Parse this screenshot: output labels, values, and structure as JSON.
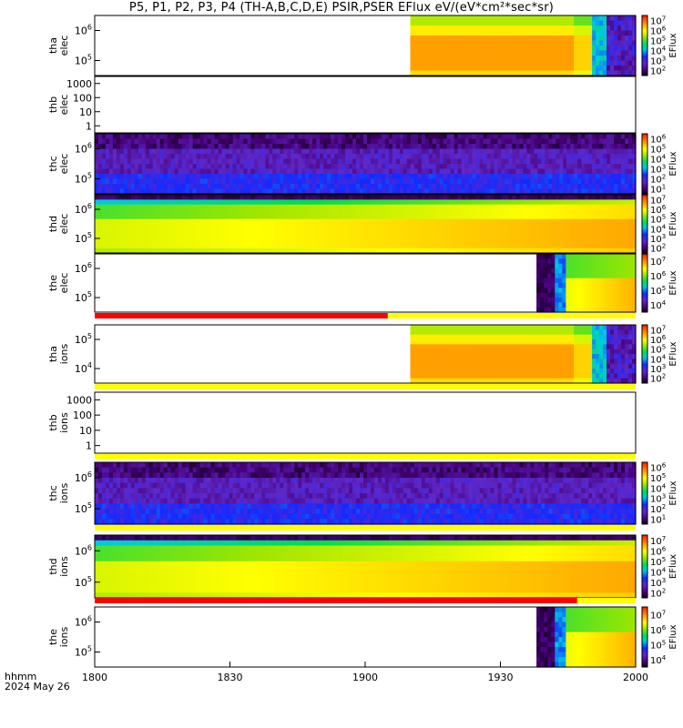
{
  "title": "P5, P1, P2, P3, P4 (TH-A,B,C,D,E) PSIR,PSER EFlux eV/(eV*cm²*sec*sr)",
  "footer": {
    "time_label": "hhmm",
    "date_label": "2024 May 26"
  },
  "colors": {
    "flag_red": "#ff0000",
    "flag_yellow": "#ffff00",
    "axis": "#000000"
  },
  "chart_data": {
    "type": "heatmap",
    "x_ticks": [
      "1800",
      "1830",
      "1900",
      "1930",
      "2000"
    ],
    "xlim": [
      "18:00",
      "20:00"
    ],
    "cbar_label": "EFlux",
    "panels": [
      {
        "id": "tha-elec",
        "probe": "tha",
        "species": "elec",
        "log": true,
        "yticks": [
          {
            "e": 5,
            "t": "10"
          },
          {
            "e": 6,
            "t": "10"
          }
        ],
        "data_start": "19:10",
        "data_end": "20:00",
        "pattern": "tha",
        "cbar": [
          {
            "e": 7,
            "t": "10"
          },
          {
            "e": 6,
            "t": "10"
          },
          {
            "e": 5,
            "t": "10"
          },
          {
            "e": 4,
            "t": "10"
          },
          {
            "e": 3,
            "t": "10"
          },
          {
            "e": 2,
            "t": "10"
          }
        ]
      },
      {
        "id": "thb-elec",
        "probe": "thb",
        "species": "elec",
        "log": true,
        "yticks": [
          {
            "t": "1"
          },
          {
            "t": "10"
          },
          {
            "t": "100"
          },
          {
            "t": "1000"
          }
        ],
        "data_start": null,
        "data_end": null,
        "pattern": "empty",
        "cbar": []
      },
      {
        "id": "thc-elec",
        "probe": "thc",
        "species": "elec",
        "log": true,
        "yticks": [
          {
            "e": 5,
            "t": "10"
          },
          {
            "e": 6,
            "t": "10"
          }
        ],
        "data_start": "18:00",
        "data_end": "20:00",
        "pattern": "thc",
        "cbar": [
          {
            "e": 6,
            "t": "10"
          },
          {
            "e": 5,
            "t": "10"
          },
          {
            "e": 4,
            "t": "10"
          },
          {
            "e": 3,
            "t": "10"
          },
          {
            "e": 2,
            "t": "10"
          },
          {
            "e": 1,
            "t": "10"
          }
        ]
      },
      {
        "id": "thd-elec",
        "probe": "thd",
        "species": "elec",
        "log": true,
        "yticks": [
          {
            "e": 5,
            "t": "10"
          },
          {
            "e": 6,
            "t": "10"
          }
        ],
        "data_start": "18:00",
        "data_end": "20:00",
        "pattern": "thd",
        "cbar": [
          {
            "e": 7,
            "t": "10"
          },
          {
            "e": 6,
            "t": "10"
          },
          {
            "e": 5,
            "t": "10"
          },
          {
            "e": 4,
            "t": "10"
          },
          {
            "e": 3,
            "t": "10"
          },
          {
            "e": 2,
            "t": "10"
          }
        ]
      },
      {
        "id": "the-elec",
        "probe": "the",
        "species": "elec",
        "log": true,
        "yticks": [
          {
            "e": 5,
            "t": "10"
          },
          {
            "e": 6,
            "t": "10"
          }
        ],
        "data_start": "19:38",
        "data_end": "20:00",
        "pattern": "the",
        "cbar": [
          {
            "e": 7,
            "t": "10"
          },
          {
            "e": 6,
            "t": "10"
          },
          {
            "e": 5,
            "t": "10"
          },
          {
            "e": 4,
            "t": "10"
          }
        ]
      },
      {
        "id": "tha-ions",
        "probe": "tha",
        "species": "ions",
        "log": true,
        "yticks": [
          {
            "e": 4,
            "t": "10"
          },
          {
            "e": 5,
            "t": "10"
          }
        ],
        "data_start": "19:10",
        "data_end": "20:00",
        "pattern": "tha",
        "cbar": [
          {
            "e": 7,
            "t": "10"
          },
          {
            "e": 6,
            "t": "10"
          },
          {
            "e": 5,
            "t": "10"
          },
          {
            "e": 4,
            "t": "10"
          },
          {
            "e": 3,
            "t": "10"
          },
          {
            "e": 2,
            "t": "10"
          }
        ]
      },
      {
        "id": "thb-ions",
        "probe": "thb",
        "species": "ions",
        "log": true,
        "yticks": [
          {
            "t": "1"
          },
          {
            "t": "10"
          },
          {
            "t": "100"
          },
          {
            "t": "1000"
          }
        ],
        "data_start": null,
        "data_end": null,
        "pattern": "empty",
        "cbar": []
      },
      {
        "id": "thc-ions",
        "probe": "thc",
        "species": "ions",
        "log": true,
        "yticks": [
          {
            "e": 5,
            "t": "10"
          },
          {
            "e": 6,
            "t": "10"
          }
        ],
        "data_start": "18:00",
        "data_end": "20:00",
        "pattern": "thc",
        "cbar": [
          {
            "e": 6,
            "t": "10"
          },
          {
            "e": 5,
            "t": "10"
          },
          {
            "e": 4,
            "t": "10"
          },
          {
            "e": 3,
            "t": "10"
          },
          {
            "e": 2,
            "t": "10"
          },
          {
            "e": 1,
            "t": "10"
          }
        ]
      },
      {
        "id": "thd-ions",
        "probe": "thd",
        "species": "ions",
        "log": true,
        "yticks": [
          {
            "e": 5,
            "t": "10"
          },
          {
            "e": 6,
            "t": "10"
          }
        ],
        "data_start": "18:00",
        "data_end": "20:00",
        "pattern": "thd",
        "cbar": [
          {
            "e": 7,
            "t": "10"
          },
          {
            "e": 6,
            "t": "10"
          },
          {
            "e": 5,
            "t": "10"
          },
          {
            "e": 4,
            "t": "10"
          },
          {
            "e": 3,
            "t": "10"
          },
          {
            "e": 2,
            "t": "10"
          }
        ]
      },
      {
        "id": "the-ions",
        "probe": "the",
        "species": "ions",
        "log": true,
        "yticks": [
          {
            "e": 5,
            "t": "10"
          },
          {
            "e": 6,
            "t": "10"
          }
        ],
        "data_start": "19:38",
        "data_end": "20:00",
        "pattern": "the",
        "cbar": [
          {
            "e": 7,
            "t": "10"
          },
          {
            "e": 6,
            "t": "10"
          },
          {
            "e": 5,
            "t": "10"
          },
          {
            "e": 4,
            "t": "10"
          }
        ]
      }
    ],
    "flag_bars": [
      {
        "after_panel": "the-elec",
        "red_end": "19:05"
      },
      {
        "after_panel": "tha-ions",
        "red_end": null
      },
      {
        "after_panel": "thb-ions",
        "red_end": null
      },
      {
        "after_panel": "thc-ions",
        "red_end": null
      },
      {
        "after_panel": "thd-ions",
        "red_end": "19:47"
      }
    ]
  }
}
